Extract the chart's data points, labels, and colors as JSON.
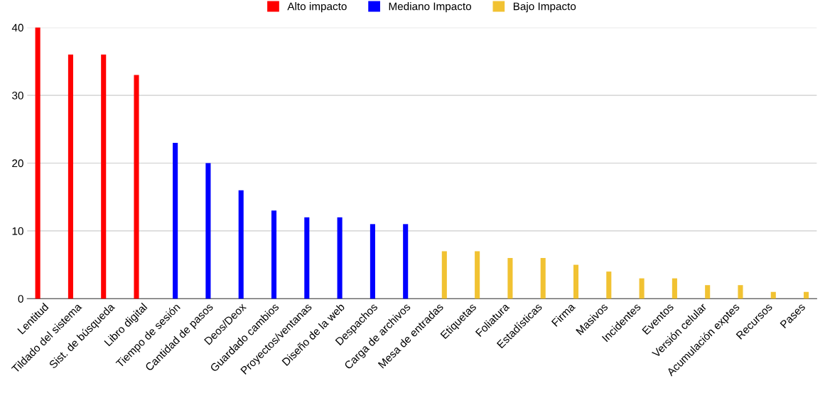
{
  "chart_data": {
    "type": "bar",
    "categories": [
      "Lentitud",
      "Tildado del sistema",
      "Sist. de búsqueda",
      "Libro digital",
      "Tiempo de sesión",
      "Cantidad de pasos",
      "Deos/Deox",
      "Guardado cambios",
      "Proyectos/ventanas",
      "Diseño de la web",
      "Despachos",
      "Carga de archivos",
      "Mesa de entradas",
      "Etiquetas",
      "Foliatura",
      "Estadísticas",
      "Firma",
      "Masivos",
      "Incidentes",
      "Eventos",
      "Versión celular",
      "Acumulación exptes",
      "Recursos",
      "Pases"
    ],
    "series": [
      {
        "name": "Alto impacto",
        "color": "#ff0000",
        "values": [
          40,
          36,
          36,
          33,
          null,
          null,
          null,
          null,
          null,
          null,
          null,
          null,
          null,
          null,
          null,
          null,
          null,
          null,
          null,
          null,
          null,
          null,
          null,
          null
        ]
      },
      {
        "name": "Mediano Impacto",
        "color": "#0000ff",
        "values": [
          null,
          null,
          null,
          null,
          23,
          20,
          16,
          13,
          12,
          12,
          11,
          11,
          null,
          null,
          null,
          null,
          null,
          null,
          null,
          null,
          null,
          null,
          null,
          null
        ]
      },
      {
        "name": "Bajo Impacto",
        "color": "#f1c232",
        "values": [
          null,
          null,
          null,
          null,
          null,
          null,
          null,
          null,
          null,
          null,
          null,
          null,
          7,
          7,
          6,
          6,
          5,
          4,
          3,
          3,
          2,
          2,
          1,
          1
        ]
      }
    ],
    "ylim": [
      0,
      40
    ],
    "yticks": [
      0,
      10,
      20,
      30,
      40
    ],
    "grid": "y",
    "legend": "top"
  }
}
